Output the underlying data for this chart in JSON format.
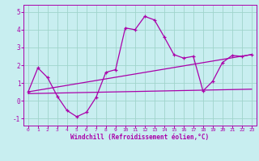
{
  "xlabel": "Windchill (Refroidissement éolien,°C)",
  "background_color": "#c8eef0",
  "grid_color": "#a0d4cc",
  "line_color": "#aa00aa",
  "spine_color": "#aa00aa",
  "x_ticks": [
    0,
    1,
    2,
    3,
    4,
    5,
    6,
    7,
    8,
    9,
    10,
    11,
    12,
    13,
    14,
    15,
    16,
    17,
    18,
    19,
    20,
    21,
    22,
    23
  ],
  "y_ticks": [
    -1,
    0,
    1,
    2,
    3,
    4,
    5
  ],
  "ylim": [
    -1.4,
    5.4
  ],
  "xlim": [
    -0.5,
    23.5
  ],
  "line1_x": [
    0,
    1,
    2,
    3,
    4,
    5,
    6,
    7,
    8,
    9,
    10,
    11,
    12,
    13,
    14,
    15,
    16,
    17,
    18,
    19,
    20,
    21,
    22,
    23
  ],
  "line1_y": [
    0.5,
    1.85,
    1.3,
    0.25,
    -0.55,
    -0.9,
    -0.65,
    0.2,
    1.6,
    1.75,
    4.1,
    4.0,
    4.75,
    4.55,
    3.6,
    2.6,
    2.4,
    2.5,
    0.55,
    1.1,
    2.15,
    2.55,
    2.5,
    2.6
  ],
  "line2_x": [
    0,
    23
  ],
  "line2_y": [
    0.4,
    0.65
  ],
  "line3_x": [
    0,
    23
  ],
  "line3_y": [
    0.5,
    2.6
  ]
}
